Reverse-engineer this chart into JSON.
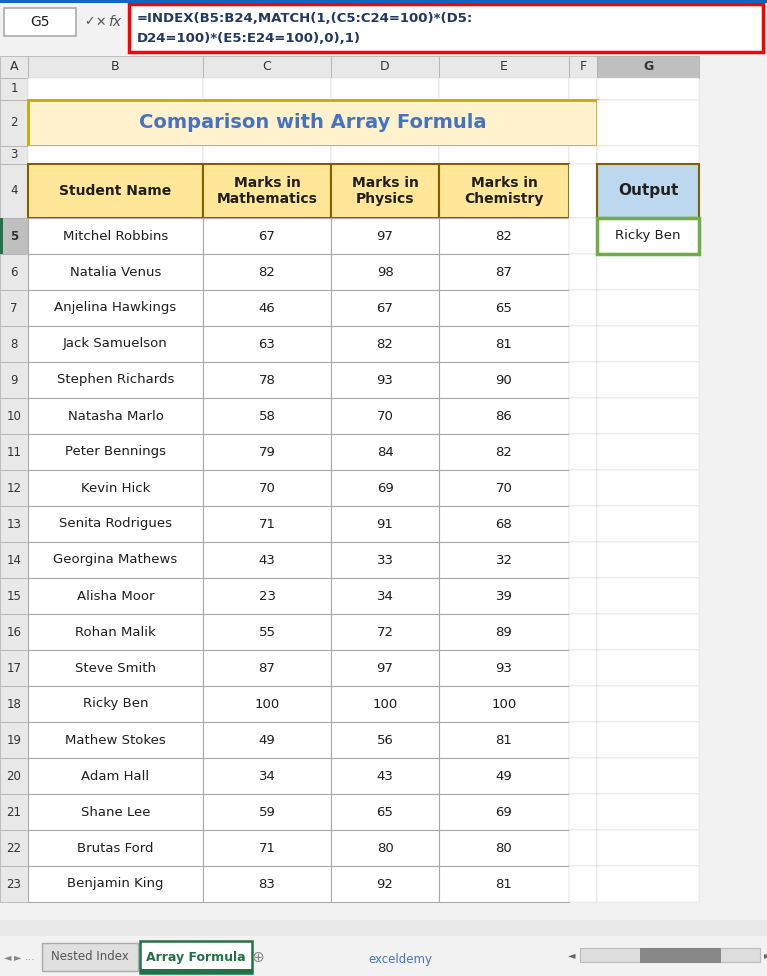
{
  "title": "Comparison with Array Formula",
  "title_color": "#4472C4",
  "title_bg": "#FFF2CC",
  "title_border": "#C9A800",
  "formula_line1": "=INDEX(B5:B24,MATCH(1,(C5:C24=100)*(D5:",
  "formula_line2": "D24=100)*(E5:E24=100),0),1)",
  "cell_ref": "G5",
  "headers": [
    "Student Name",
    "Marks in\nMathematics",
    "Marks in\nPhysics",
    "Marks in\nChemistry",
    "Output"
  ],
  "header_bg": "#FFE699",
  "header_border": "#806000",
  "output_header_bg": "#BDD7EE",
  "output_cell_border": "#70AD47",
  "output_value": "Ricky Ben",
  "students": [
    [
      "Mitchel Robbins",
      67,
      97,
      82
    ],
    [
      "Natalia Venus",
      82,
      98,
      87
    ],
    [
      "Anjelina Hawkings",
      46,
      67,
      65
    ],
    [
      "Jack Samuelson",
      63,
      82,
      81
    ],
    [
      "Stephen Richards",
      78,
      93,
      90
    ],
    [
      "Natasha Marlo",
      58,
      70,
      86
    ],
    [
      "Peter Bennings",
      79,
      84,
      82
    ],
    [
      "Kevin Hick",
      70,
      69,
      70
    ],
    [
      "Senita Rodrigues",
      71,
      91,
      68
    ],
    [
      "Georgina Mathews",
      43,
      33,
      32
    ],
    [
      "Alisha Moor",
      23,
      34,
      39
    ],
    [
      "Rohan Malik",
      55,
      72,
      89
    ],
    [
      "Steve Smith",
      87,
      97,
      93
    ],
    [
      "Ricky Ben",
      100,
      100,
      100
    ],
    [
      "Mathew Stokes",
      49,
      56,
      81
    ],
    [
      "Adam Hall",
      34,
      43,
      49
    ],
    [
      "Shane Lee",
      59,
      65,
      69
    ],
    [
      "Brutas Ford",
      71,
      80,
      80
    ],
    [
      "Benjamin King",
      83,
      92,
      81
    ]
  ],
  "col_letters": [
    "A",
    "B",
    "C",
    "D",
    "E",
    "F",
    "G"
  ],
  "bg_color": "#F2F2F2",
  "formula_border_color": "#FF0000",
  "tab_active": "Array Formula",
  "tab_inactive": "Nested Index",
  "tab_active_color": "#217346",
  "tab_inactive_color": "#555555",
  "col_header_bg": "#E8E8E8",
  "col_header_selected_bg": "#BFBFBF",
  "row_header_bg": "#E8E8E8",
  "row_header_selected_bg": "#BFBFBF",
  "selected_row": 5,
  "selected_col": 6
}
